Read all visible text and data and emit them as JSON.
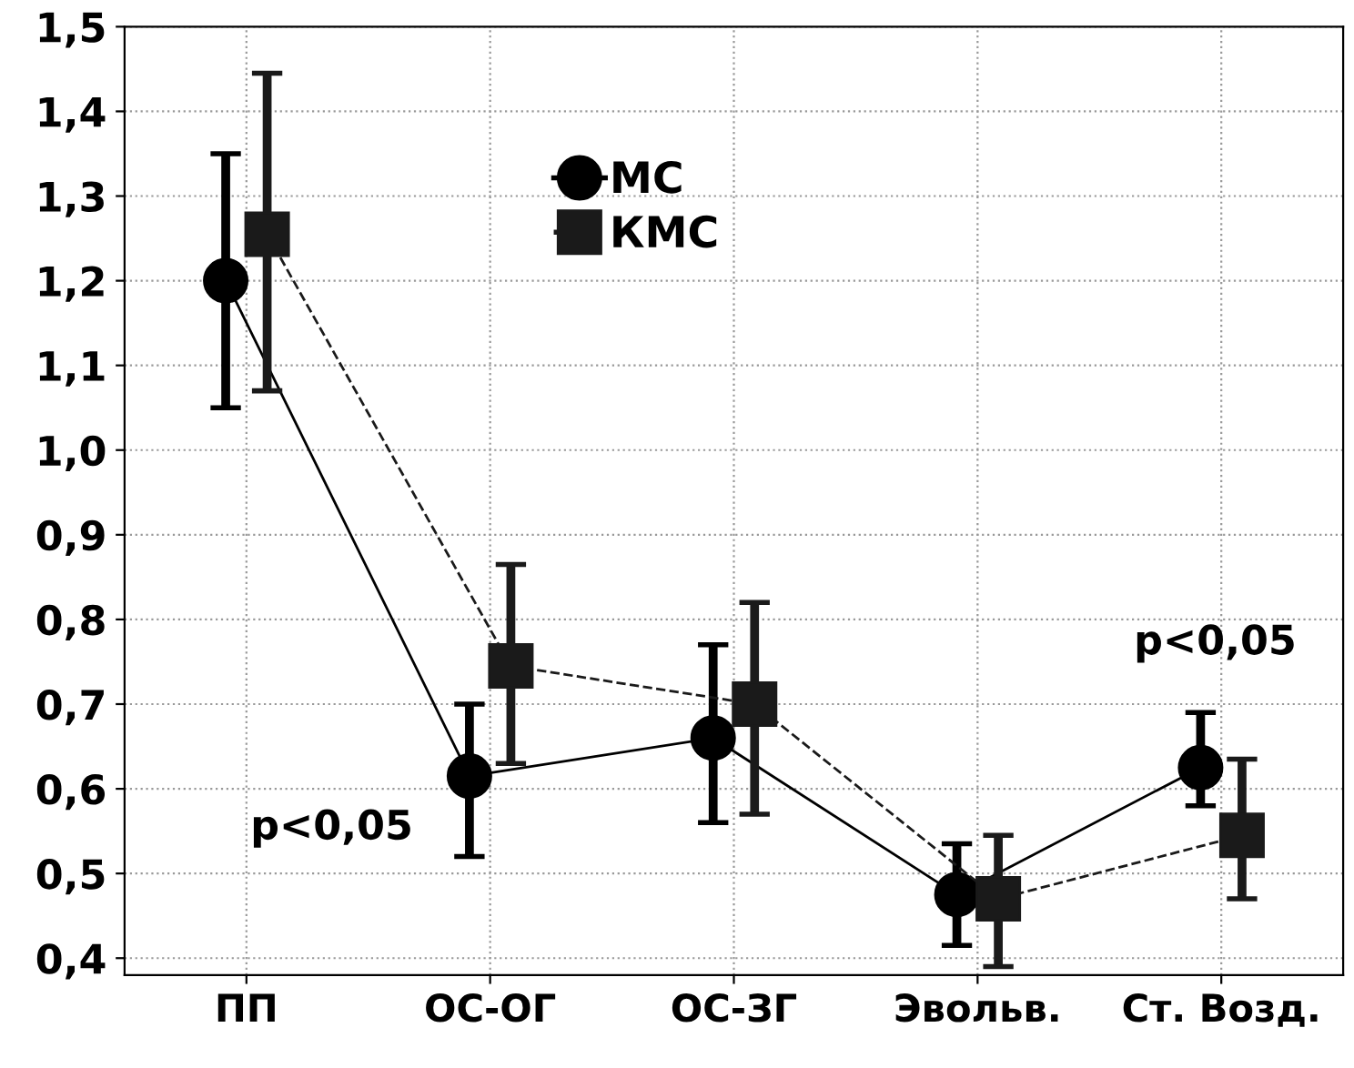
{
  "chart_data": {
    "type": "line",
    "categories": [
      "ПП",
      "ОС-ОГ",
      "ОС-ЗГ",
      "Эвольв.",
      "Ст. Возд."
    ],
    "series": [
      {
        "name": "МС",
        "color": "#000000",
        "marker": "circle",
        "line_style": "solid",
        "values": [
          1.2,
          0.615,
          0.66,
          0.475,
          0.625
        ],
        "errors": [
          [
            1.05,
            1.35
          ],
          [
            0.52,
            0.7
          ],
          [
            0.56,
            0.77
          ],
          [
            0.415,
            0.535
          ],
          [
            0.58,
            0.69
          ]
        ]
      },
      {
        "name": "КМС",
        "color": "#1a1a1a",
        "marker": "square",
        "line_style": "dashed",
        "values": [
          1.255,
          0.745,
          0.7,
          0.47,
          0.545
        ],
        "errors": [
          [
            1.07,
            1.445
          ],
          [
            0.63,
            0.865
          ],
          [
            0.57,
            0.82
          ],
          [
            0.39,
            0.545
          ],
          [
            0.47,
            0.635
          ]
        ]
      }
    ],
    "ylim": [
      0.38,
      1.5
    ],
    "yticks": [
      {
        "value": 0.4,
        "label": "0,4"
      },
      {
        "value": 0.5,
        "label": "0,5"
      },
      {
        "value": 0.6,
        "label": "0,6"
      },
      {
        "value": 0.7,
        "label": "0,7"
      },
      {
        "value": 0.8,
        "label": "0,8"
      },
      {
        "value": 0.9,
        "label": "0,9"
      },
      {
        "value": 1.0,
        "label": "1,0"
      },
      {
        "value": 1.1,
        "label": "1,1"
      },
      {
        "value": 1.2,
        "label": "1,2"
      },
      {
        "value": 1.3,
        "label": "1,3"
      },
      {
        "value": 1.4,
        "label": "1,4"
      },
      {
        "value": 1.5,
        "label": "1,5"
      }
    ],
    "grid": true,
    "legend": "top",
    "annotations": [
      "p<0,05",
      "p<0,05"
    ]
  }
}
